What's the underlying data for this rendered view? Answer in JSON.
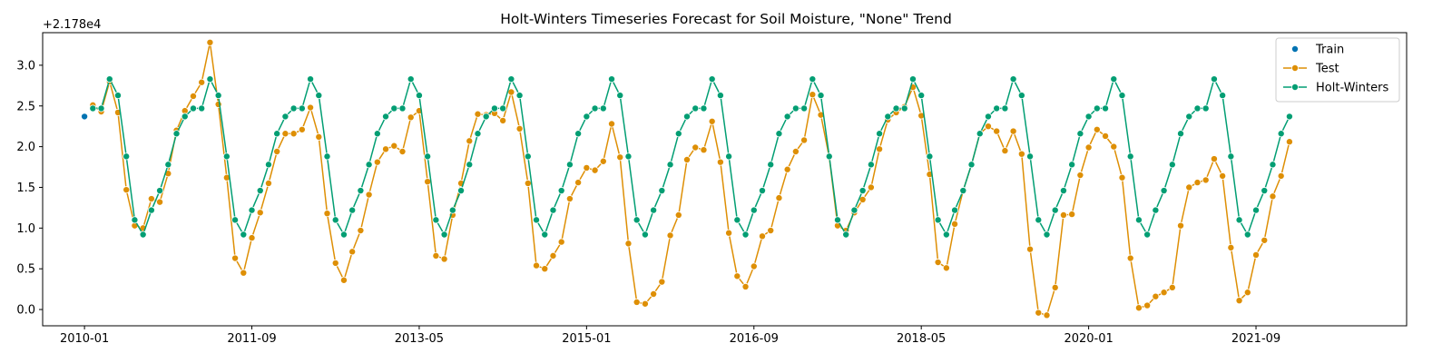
{
  "chart_data": {
    "type": "line",
    "title": "Holt-Winters Timeseries Forecast for Soil Moisture, \"None\" Trend",
    "y_offset_label": "+2.178e4",
    "xlabel": "",
    "ylabel": "",
    "x_start": "2010-01",
    "x_step": "1 month",
    "x_ticks": [
      "2010-01",
      "2011-09",
      "2013-05",
      "2015-01",
      "2016-09",
      "2018-05",
      "2020-01",
      "2021-09"
    ],
    "y_ticks": [
      "0.0",
      "0.5",
      "1.0",
      "1.5",
      "2.0",
      "2.5",
      "3.0"
    ],
    "y_tick_values": [
      0.0,
      0.5,
      1.0,
      1.5,
      2.0,
      2.5,
      3.0
    ],
    "xlim": [
      "2009-08",
      "2023-03"
    ],
    "ylim": [
      -0.2,
      3.4
    ],
    "grid": false,
    "legend_position": "upper right",
    "series": [
      {
        "name": "Train",
        "kind": "scatter",
        "color": "#0173b2",
        "x": [
          "2010-01"
        ],
        "values": [
          2.37
        ]
      },
      {
        "name": "Test",
        "kind": "line",
        "color": "#de8f05",
        "x_start": "2010-02",
        "values": [
          2.51,
          2.43,
          2.8,
          2.42,
          1.47,
          1.03,
          1.0,
          1.36,
          1.32,
          1.67,
          2.2,
          2.44,
          2.62,
          2.79,
          3.28,
          2.52,
          1.62,
          0.63,
          0.45,
          0.88,
          1.19,
          1.55,
          1.94,
          2.16,
          2.16,
          2.21,
          2.48,
          2.12,
          1.18,
          0.57,
          0.36,
          0.71,
          0.97,
          1.41,
          1.81,
          1.97,
          2.01,
          1.94,
          2.36,
          2.44,
          1.57,
          0.66,
          0.62,
          1.16,
          1.55,
          2.07,
          2.4,
          2.39,
          2.41,
          2.32,
          2.67,
          2.22,
          1.55,
          0.54,
          0.5,
          0.66,
          0.83,
          1.36,
          1.56,
          1.74,
          1.71,
          1.82,
          2.28,
          1.87,
          0.81,
          0.09,
          0.07,
          0.19,
          0.34,
          0.91,
          1.16,
          1.84,
          1.99,
          1.96,
          2.31,
          1.81,
          0.94,
          0.41,
          0.28,
          0.53,
          0.9,
          0.97,
          1.37,
          1.72,
          1.94,
          2.08,
          2.64,
          2.39,
          1.87,
          1.03,
          0.97,
          1.19,
          1.35,
          1.5,
          1.97,
          2.33,
          2.42,
          2.49,
          2.73,
          2.38,
          1.66,
          0.58,
          0.51,
          1.05,
          1.46,
          1.78,
          2.16,
          2.25,
          2.19,
          1.95,
          2.19,
          1.91,
          0.74,
          -0.04,
          -0.07,
          0.27,
          1.16,
          1.17,
          1.65,
          1.99,
          2.21,
          2.13,
          2.0,
          1.62,
          0.63,
          0.02,
          0.05,
          0.16,
          0.21,
          0.27,
          1.03,
          1.5,
          1.56,
          1.59,
          1.85,
          1.64,
          0.76,
          0.11,
          0.21,
          0.67,
          0.85,
          1.39,
          1.64,
          2.06
        ]
      },
      {
        "name": "Holt-Winters",
        "kind": "line",
        "color": "#029e73",
        "x_start": "2010-02",
        "season_values": [
          2.47,
          2.47,
          2.83,
          2.63,
          1.88,
          1.1,
          0.92,
          1.22,
          1.46,
          1.78,
          2.16,
          2.37
        ],
        "periods": 12
      }
    ]
  }
}
